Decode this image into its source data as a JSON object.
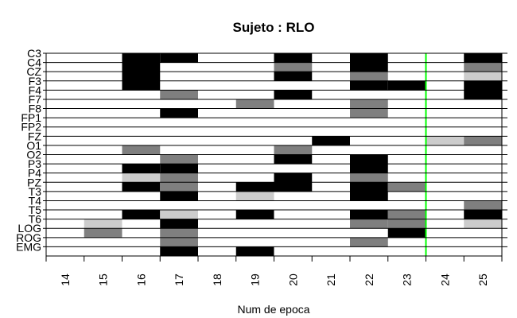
{
  "chart_data": {
    "type": "heatmap",
    "title": "Sujeto : RLO",
    "xlabel": "Num de epoca",
    "ylabel": "",
    "x": [
      14,
      15,
      16,
      17,
      18,
      19,
      20,
      21,
      22,
      23,
      24,
      25
    ],
    "xlim": [
      13.5,
      25.5
    ],
    "channels": [
      "C3",
      "C4",
      "CZ",
      "F3",
      "F4",
      "F7",
      "F8",
      "FP1",
      "FP2",
      "FZ",
      "O1",
      "O2",
      "P3",
      "P4",
      "PZ",
      "T3",
      "T4",
      "T5",
      "T6",
      "LOG",
      "ROG",
      "EMG"
    ],
    "levels": {
      "0": "#ffffff",
      "1": "#cccccc",
      "2": "#7f7f7f",
      "3": "#000000"
    },
    "cells": [
      {
        "channel": "C3",
        "epoch": 16,
        "level": 3
      },
      {
        "channel": "C3",
        "epoch": 17,
        "level": 3
      },
      {
        "channel": "C3",
        "epoch": 20,
        "level": 3
      },
      {
        "channel": "C3",
        "epoch": 22,
        "level": 3
      },
      {
        "channel": "C3",
        "epoch": 25,
        "level": 3
      },
      {
        "channel": "C4",
        "epoch": 16,
        "level": 3
      },
      {
        "channel": "C4",
        "epoch": 20,
        "level": 2
      },
      {
        "channel": "C4",
        "epoch": 22,
        "level": 3
      },
      {
        "channel": "C4",
        "epoch": 25,
        "level": 2
      },
      {
        "channel": "CZ",
        "epoch": 16,
        "level": 3
      },
      {
        "channel": "CZ",
        "epoch": 20,
        "level": 3
      },
      {
        "channel": "CZ",
        "epoch": 22,
        "level": 2
      },
      {
        "channel": "CZ",
        "epoch": 25,
        "level": 1
      },
      {
        "channel": "F3",
        "epoch": 16,
        "level": 3
      },
      {
        "channel": "F3",
        "epoch": 22,
        "level": 3
      },
      {
        "channel": "F3",
        "epoch": 23,
        "level": 3
      },
      {
        "channel": "F3",
        "epoch": 25,
        "level": 3
      },
      {
        "channel": "F4",
        "epoch": 17,
        "level": 2
      },
      {
        "channel": "F4",
        "epoch": 20,
        "level": 3
      },
      {
        "channel": "F4",
        "epoch": 25,
        "level": 3
      },
      {
        "channel": "F7",
        "epoch": 19,
        "level": 2
      },
      {
        "channel": "F7",
        "epoch": 22,
        "level": 2
      },
      {
        "channel": "F8",
        "epoch": 17,
        "level": 3
      },
      {
        "channel": "F8",
        "epoch": 22,
        "level": 2
      },
      {
        "channel": "FZ",
        "epoch": 21,
        "level": 3
      },
      {
        "channel": "FZ",
        "epoch": 24,
        "level": 1
      },
      {
        "channel": "FZ",
        "epoch": 25,
        "level": 2
      },
      {
        "channel": "O1",
        "epoch": 16,
        "level": 2
      },
      {
        "channel": "O1",
        "epoch": 20,
        "level": 2
      },
      {
        "channel": "O2",
        "epoch": 17,
        "level": 2
      },
      {
        "channel": "O2",
        "epoch": 20,
        "level": 3
      },
      {
        "channel": "O2",
        "epoch": 22,
        "level": 3
      },
      {
        "channel": "P3",
        "epoch": 16,
        "level": 3
      },
      {
        "channel": "P3",
        "epoch": 17,
        "level": 3
      },
      {
        "channel": "P3",
        "epoch": 22,
        "level": 3
      },
      {
        "channel": "P4",
        "epoch": 16,
        "level": 1
      },
      {
        "channel": "P4",
        "epoch": 17,
        "level": 2
      },
      {
        "channel": "P4",
        "epoch": 20,
        "level": 3
      },
      {
        "channel": "P4",
        "epoch": 22,
        "level": 2
      },
      {
        "channel": "PZ",
        "epoch": 16,
        "level": 3
      },
      {
        "channel": "PZ",
        "epoch": 17,
        "level": 2
      },
      {
        "channel": "PZ",
        "epoch": 19,
        "level": 3
      },
      {
        "channel": "PZ",
        "epoch": 20,
        "level": 3
      },
      {
        "channel": "PZ",
        "epoch": 22,
        "level": 3
      },
      {
        "channel": "PZ",
        "epoch": 23,
        "level": 2
      },
      {
        "channel": "T3",
        "epoch": 17,
        "level": 3
      },
      {
        "channel": "T3",
        "epoch": 19,
        "level": 1
      },
      {
        "channel": "T3",
        "epoch": 22,
        "level": 3
      },
      {
        "channel": "T4",
        "epoch": 25,
        "level": 2
      },
      {
        "channel": "T5",
        "epoch": 16,
        "level": 3
      },
      {
        "channel": "T5",
        "epoch": 17,
        "level": 1
      },
      {
        "channel": "T5",
        "epoch": 19,
        "level": 3
      },
      {
        "channel": "T5",
        "epoch": 22,
        "level": 3
      },
      {
        "channel": "T5",
        "epoch": 23,
        "level": 2
      },
      {
        "channel": "T5",
        "epoch": 25,
        "level": 3
      },
      {
        "channel": "T6",
        "epoch": 15,
        "level": 1
      },
      {
        "channel": "T6",
        "epoch": 17,
        "level": 3
      },
      {
        "channel": "T6",
        "epoch": 22,
        "level": 2
      },
      {
        "channel": "T6",
        "epoch": 23,
        "level": 2
      },
      {
        "channel": "T6",
        "epoch": 25,
        "level": 1
      },
      {
        "channel": "LOG",
        "epoch": 15,
        "level": 2
      },
      {
        "channel": "LOG",
        "epoch": 17,
        "level": 2
      },
      {
        "channel": "LOG",
        "epoch": 23,
        "level": 3
      },
      {
        "channel": "ROG",
        "epoch": 17,
        "level": 2
      },
      {
        "channel": "ROG",
        "epoch": 22,
        "level": 2
      },
      {
        "channel": "EMG",
        "epoch": 17,
        "level": 3
      },
      {
        "channel": "EMG",
        "epoch": 19,
        "level": 3
      }
    ],
    "marker": {
      "epoch": 23.5,
      "color": "#00ff00"
    },
    "grid": false,
    "legend": "none"
  }
}
